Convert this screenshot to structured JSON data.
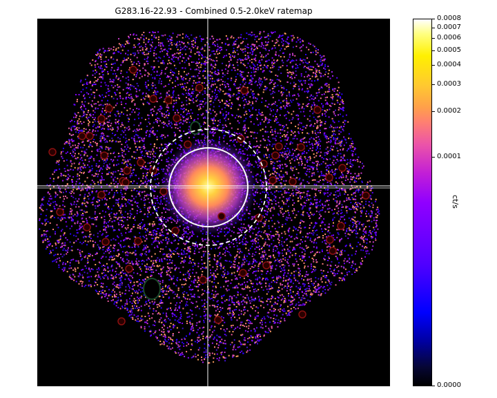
{
  "chart_data": {
    "type": "heatmap",
    "title": "G283.16-22.93 - Combined 0.5-2.0keV ratemap",
    "xlabel": "",
    "ylabel": "",
    "colorbar": {
      "label": "ct/s",
      "scale": "log",
      "colormap": "gnuplot2",
      "range": [
        0.0,
        0.0008
      ],
      "ticks": [
        {
          "value": 0.0008,
          "label": "0.0008"
        },
        {
          "value": 0.0007,
          "label": "0.0007"
        },
        {
          "value": 0.0006,
          "label": "0.0006"
        },
        {
          "value": 0.0005,
          "label": "0.0005"
        },
        {
          "value": 0.0004,
          "label": "0.0004"
        },
        {
          "value": 0.0003,
          "label": "0.0003"
        },
        {
          "value": 0.0002,
          "label": "0.0002"
        },
        {
          "value": 0.0001,
          "label": "0.0001"
        },
        {
          "value": 0.0,
          "label": "0.0000"
        }
      ]
    },
    "annotations": {
      "crosshair": "white solid lines through cluster centre",
      "inner_circle": "white solid circle",
      "outer_circle": "white dashed circle",
      "masked_point_sources": "dark red circles",
      "masked_extended_sources": "dark green ellipses"
    }
  }
}
